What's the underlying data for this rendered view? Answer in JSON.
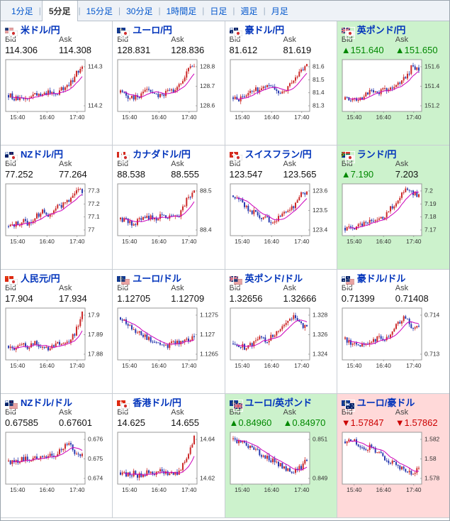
{
  "tabbar": {
    "separator": "|",
    "tabs": [
      {
        "label": "1分足",
        "selected": false
      },
      {
        "label": "5分足",
        "selected": true
      },
      {
        "label": "15分足",
        "selected": false
      },
      {
        "label": "30分足",
        "selected": false
      },
      {
        "label": "1時間足",
        "selected": false
      },
      {
        "label": "日足",
        "selected": false
      },
      {
        "label": "週足",
        "selected": false
      },
      {
        "label": "月足",
        "selected": false
      }
    ]
  },
  "colors": {
    "accent_blue": "#0033bb",
    "up_green": "#008800",
    "down_red": "#cc0000",
    "highlight_up_bg": "#ccf2cc",
    "highlight_down_bg": "#ffd9d9",
    "candle_up": "#cc2a2a",
    "candle_down": "#2a3bb0",
    "ma_line": "#cc00bb",
    "arrow_up": "▲",
    "arrow_down": "▼"
  },
  "chart_data": [
    {
      "type": "candlestick",
      "pair": "米ドル/円",
      "y_ticks": [
        "114.3",
        "114.2"
      ],
      "x_ticks": [
        "15:40",
        "16:40",
        "17:40"
      ]
    },
    {
      "type": "candlestick",
      "pair": "ユーロ/円",
      "y_ticks": [
        "128.8",
        "128.7",
        "128.6"
      ],
      "x_ticks": [
        "15:40",
        "16:40",
        "17:40"
      ]
    },
    {
      "type": "candlestick",
      "pair": "豪ドル/円",
      "y_ticks": [
        "81.6",
        "81.5",
        "81.4",
        "81.3"
      ],
      "x_ticks": [
        "15:40",
        "16:40",
        "17:40"
      ]
    },
    {
      "type": "candlestick",
      "pair": "英ポンド/円",
      "y_ticks": [
        "151.6",
        "151.4",
        "151.2"
      ],
      "x_ticks": [
        "15:40",
        "16:40",
        "17:40"
      ]
    },
    {
      "type": "candlestick",
      "pair": "NZドル/円",
      "y_ticks": [
        "77.3",
        "77.2",
        "77.1",
        "77"
      ],
      "x_ticks": [
        "15:40",
        "16:40",
        "17:40"
      ]
    },
    {
      "type": "candlestick",
      "pair": "カナダドル/円",
      "y_ticks": [
        "88.5",
        "88.4"
      ],
      "x_ticks": [
        "15:40",
        "16:40",
        "17:40"
      ]
    },
    {
      "type": "candlestick",
      "pair": "スイスフラン/円",
      "y_ticks": [
        "123.6",
        "123.5",
        "123.4"
      ],
      "x_ticks": [
        "15:40",
        "16:40",
        "17:40"
      ]
    },
    {
      "type": "candlestick",
      "pair": "ランド/円",
      "y_ticks": [
        "7.2",
        "7.19",
        "7.18",
        "7.17"
      ],
      "x_ticks": [
        "15:40",
        "16:40",
        "17:40"
      ]
    },
    {
      "type": "candlestick",
      "pair": "人民元/円",
      "y_ticks": [
        "17.9",
        "17.89",
        "17.88"
      ],
      "x_ticks": [
        "15:40",
        "16:40",
        "17:40"
      ]
    },
    {
      "type": "candlestick",
      "pair": "ユーロ/ドル",
      "y_ticks": [
        "1.1275",
        "1.127",
        "1.1265"
      ],
      "x_ticks": [
        "15:40",
        "16:40",
        "17:40"
      ]
    },
    {
      "type": "candlestick",
      "pair": "英ポンド/ドル",
      "y_ticks": [
        "1.328",
        "1.326",
        "1.324"
      ],
      "x_ticks": [
        "15:40",
        "16:40",
        "17:40"
      ]
    },
    {
      "type": "candlestick",
      "pair": "豪ドル/ドル",
      "y_ticks": [
        "0.714",
        "0.713"
      ],
      "x_ticks": [
        "15:40",
        "16:40",
        "17:40"
      ]
    },
    {
      "type": "candlestick",
      "pair": "NZドル/ドル",
      "y_ticks": [
        "0.676",
        "0.675",
        "0.674"
      ],
      "x_ticks": [
        "15:40",
        "16:40",
        "17:40"
      ]
    },
    {
      "type": "candlestick",
      "pair": "香港ドル/円",
      "y_ticks": [
        "14.64",
        "14.62"
      ],
      "x_ticks": [
        "15:40",
        "16:40",
        "17:40"
      ]
    },
    {
      "type": "candlestick",
      "pair": "ユーロ/英ポンド",
      "y_ticks": [
        "0.851",
        "0.849"
      ],
      "x_ticks": [
        "15:40",
        "16:40",
        "17:40"
      ]
    },
    {
      "type": "candlestick",
      "pair": "ユーロ/豪ドル",
      "y_ticks": [
        "1.582",
        "1.58",
        "1.578"
      ],
      "x_ticks": [
        "15:40",
        "16:40",
        "17:40"
      ]
    }
  ],
  "panels": [
    {
      "pair": "米ドル/円",
      "flags": [
        "us",
        "jp"
      ],
      "bid_label": "Bid",
      "ask_label": "Ask",
      "bid": "114.306",
      "ask": "114.308",
      "bid_dir": "flat",
      "ask_dir": "flat",
      "highlight": "none",
      "y_ticks": [
        "114.3",
        "114.2"
      ],
      "x_ticks": [
        "15:40",
        "16:40",
        "17:40"
      ],
      "trend": [
        0.3,
        0.22,
        0.18,
        0.25,
        0.32,
        0.28,
        0.35,
        0.3,
        0.42,
        0.5,
        0.72,
        0.95
      ]
    },
    {
      "pair": "ユーロ/円",
      "flags": [
        "eu",
        "jp"
      ],
      "bid_label": "Bid",
      "ask_label": "Ask",
      "bid": "128.831",
      "ask": "128.836",
      "bid_dir": "flat",
      "ask_dir": "flat",
      "highlight": "none",
      "y_ticks": [
        "128.8",
        "128.7",
        "128.6"
      ],
      "x_ticks": [
        "15:40",
        "16:40",
        "17:40"
      ],
      "trend": [
        0.35,
        0.28,
        0.22,
        0.3,
        0.38,
        0.32,
        0.28,
        0.4,
        0.35,
        0.55,
        0.8,
        0.95
      ]
    },
    {
      "pair": "豪ドル/円",
      "flags": [
        "au",
        "jp"
      ],
      "bid_label": "Bid",
      "ask_label": "Ask",
      "bid": "81.612",
      "ask": "81.619",
      "bid_dir": "flat",
      "ask_dir": "flat",
      "highlight": "none",
      "y_ticks": [
        "81.6",
        "81.5",
        "81.4",
        "81.3"
      ],
      "x_ticks": [
        "15:40",
        "16:40",
        "17:40"
      ],
      "trend": [
        0.25,
        0.2,
        0.3,
        0.45,
        0.4,
        0.5,
        0.45,
        0.35,
        0.45,
        0.6,
        0.85,
        0.9
      ]
    },
    {
      "pair": "英ポンド/円",
      "flags": [
        "gb",
        "jp"
      ],
      "bid_label": "Bid",
      "ask_label": "Ask",
      "bid": "151.640",
      "ask": "151.650",
      "bid_dir": "up",
      "ask_dir": "up",
      "highlight": "up",
      "y_ticks": [
        "151.6",
        "151.4",
        "151.2"
      ],
      "x_ticks": [
        "15:40",
        "16:40",
        "17:40"
      ],
      "trend": [
        0.2,
        0.25,
        0.22,
        0.3,
        0.38,
        0.35,
        0.45,
        0.4,
        0.55,
        0.65,
        0.9,
        0.85
      ]
    },
    {
      "pair": "NZドル/円",
      "flags": [
        "nz",
        "jp"
      ],
      "bid_label": "Bid",
      "ask_label": "Ask",
      "bid": "77.252",
      "ask": "77.264",
      "bid_dir": "flat",
      "ask_dir": "flat",
      "highlight": "none",
      "y_ticks": [
        "77.3",
        "77.2",
        "77.1",
        "77"
      ],
      "x_ticks": [
        "15:40",
        "16:40",
        "17:40"
      ],
      "trend": [
        0.15,
        0.2,
        0.25,
        0.22,
        0.35,
        0.45,
        0.4,
        0.55,
        0.6,
        0.7,
        0.9,
        0.88
      ]
    },
    {
      "pair": "カナダドル/円",
      "flags": [
        "ca",
        "jp"
      ],
      "bid_label": "Bid",
      "ask_label": "Ask",
      "bid": "88.538",
      "ask": "88.555",
      "bid_dir": "flat",
      "ask_dir": "flat",
      "highlight": "none",
      "y_ticks": [
        "88.5",
        "88.4"
      ],
      "x_ticks": [
        "15:40",
        "16:40",
        "17:40"
      ],
      "trend": [
        0.3,
        0.25,
        0.2,
        0.28,
        0.35,
        0.3,
        0.4,
        0.35,
        0.3,
        0.45,
        0.75,
        0.9
      ]
    },
    {
      "pair": "スイスフラン/円",
      "flags": [
        "ch",
        "jp"
      ],
      "bid_label": "Bid",
      "ask_label": "Ask",
      "bid": "123.547",
      "ask": "123.565",
      "bid_dir": "flat",
      "ask_dir": "flat",
      "highlight": "none",
      "y_ticks": [
        "123.6",
        "123.5",
        "123.4"
      ],
      "x_ticks": [
        "15:40",
        "16:40",
        "17:40"
      ],
      "trend": [
        0.8,
        0.7,
        0.55,
        0.45,
        0.35,
        0.3,
        0.25,
        0.35,
        0.45,
        0.55,
        0.8,
        0.9
      ]
    },
    {
      "pair": "ランド/円",
      "flags": [
        "za",
        "jp"
      ],
      "bid_label": "Bid",
      "ask_label": "Ask",
      "bid": "7.190",
      "ask": "7.203",
      "bid_dir": "up",
      "ask_dir": "flat",
      "highlight": "up",
      "y_ticks": [
        "7.2",
        "7.19",
        "7.18",
        "7.17"
      ],
      "x_ticks": [
        "15:40",
        "16:40",
        "17:40"
      ],
      "trend": [
        0.12,
        0.1,
        0.18,
        0.25,
        0.3,
        0.28,
        0.4,
        0.55,
        0.7,
        0.95,
        0.85,
        0.8
      ]
    },
    {
      "pair": "人民元/円",
      "flags": [
        "cn",
        "jp"
      ],
      "bid_label": "Bid",
      "ask_label": "Ask",
      "bid": "17.904",
      "ask": "17.934",
      "bid_dir": "flat",
      "ask_dir": "flat",
      "highlight": "none",
      "y_ticks": [
        "17.9",
        "17.89",
        "17.88"
      ],
      "x_ticks": [
        "15:40",
        "16:40",
        "17:40"
      ],
      "trend": [
        0.25,
        0.2,
        0.28,
        0.22,
        0.3,
        0.25,
        0.2,
        0.28,
        0.35,
        0.3,
        0.55,
        0.95
      ]
    },
    {
      "pair": "ユーロ/ドル",
      "flags": [
        "eu",
        "us"
      ],
      "bid_label": "Bid",
      "ask_label": "Ask",
      "bid": "1.12705",
      "ask": "1.12709",
      "bid_dir": "flat",
      "ask_dir": "flat",
      "highlight": "none",
      "y_ticks": [
        "1.1275",
        "1.127",
        "1.1265"
      ],
      "x_ticks": [
        "15:40",
        "16:40",
        "17:40"
      ],
      "trend": [
        0.85,
        0.75,
        0.6,
        0.5,
        0.4,
        0.35,
        0.3,
        0.25,
        0.35,
        0.3,
        0.4,
        0.45
      ]
    },
    {
      "pair": "英ポンド/ドル",
      "flags": [
        "gb",
        "us"
      ],
      "bid_label": "Bid",
      "ask_label": "Ask",
      "bid": "1.32656",
      "ask": "1.32666",
      "bid_dir": "flat",
      "ask_dir": "flat",
      "highlight": "none",
      "y_ticks": [
        "1.328",
        "1.326",
        "1.324"
      ],
      "x_ticks": [
        "15:40",
        "16:40",
        "17:40"
      ],
      "trend": [
        0.3,
        0.25,
        0.2,
        0.3,
        0.4,
        0.35,
        0.5,
        0.6,
        0.75,
        0.85,
        0.7,
        0.6
      ]
    },
    {
      "pair": "豪ドル/ドル",
      "flags": [
        "au",
        "us"
      ],
      "bid_label": "Bid",
      "ask_label": "Ask",
      "bid": "0.71399",
      "ask": "0.71408",
      "bid_dir": "flat",
      "ask_dir": "flat",
      "highlight": "none",
      "y_ticks": [
        "0.714",
        "0.713"
      ],
      "x_ticks": [
        "15:40",
        "16:40",
        "17:40"
      ],
      "trend": [
        0.4,
        0.3,
        0.25,
        0.35,
        0.3,
        0.45,
        0.4,
        0.55,
        0.75,
        0.85,
        0.65,
        0.7
      ]
    },
    {
      "pair": "NZドル/ドル",
      "flags": [
        "nz",
        "us"
      ],
      "bid_label": "Bid",
      "ask_label": "Ask",
      "bid": "0.67585",
      "ask": "0.67601",
      "bid_dir": "flat",
      "ask_dir": "flat",
      "highlight": "none",
      "y_ticks": [
        "0.676",
        "0.675",
        "0.674"
      ],
      "x_ticks": [
        "15:40",
        "16:40",
        "17:40"
      ],
      "trend": [
        0.45,
        0.4,
        0.5,
        0.45,
        0.55,
        0.5,
        0.6,
        0.55,
        0.7,
        0.85,
        0.6,
        0.55
      ]
    },
    {
      "pair": "香港ドル/円",
      "flags": [
        "hk",
        "jp"
      ],
      "bid_label": "Bid",
      "ask_label": "Ask",
      "bid": "14.625",
      "ask": "14.655",
      "bid_dir": "flat",
      "ask_dir": "flat",
      "highlight": "none",
      "y_ticks": [
        "14.64",
        "14.62"
      ],
      "x_ticks": [
        "15:40",
        "16:40",
        "17:40"
      ],
      "trend": [
        0.2,
        0.15,
        0.18,
        0.12,
        0.2,
        0.15,
        0.22,
        0.18,
        0.15,
        0.25,
        0.55,
        0.95
      ]
    },
    {
      "pair": "ユーロ/英ポンド",
      "flags": [
        "eu",
        "gb"
      ],
      "bid_label": "Bid",
      "ask_label": "Ask",
      "bid": "0.84960",
      "ask": "0.84970",
      "bid_dir": "up",
      "ask_dir": "up",
      "highlight": "up",
      "y_ticks": [
        "0.851",
        "0.849"
      ],
      "x_ticks": [
        "15:40",
        "16:40",
        "17:40"
      ],
      "trend": [
        0.9,
        0.85,
        0.75,
        0.7,
        0.6,
        0.5,
        0.45,
        0.35,
        0.25,
        0.2,
        0.3,
        0.45
      ]
    },
    {
      "pair": "ユーロ/豪ドル",
      "flags": [
        "eu",
        "au"
      ],
      "bid_label": "Bid",
      "ask_label": "Ask",
      "bid": "1.57847",
      "ask": "1.57862",
      "bid_dir": "down",
      "ask_dir": "down",
      "highlight": "down",
      "y_ticks": [
        "1.582",
        "1.58",
        "1.578"
      ],
      "x_ticks": [
        "15:40",
        "16:40",
        "17:40"
      ],
      "trend": [
        0.85,
        0.9,
        0.8,
        0.7,
        0.75,
        0.6,
        0.5,
        0.4,
        0.3,
        0.25,
        0.2,
        0.28
      ]
    }
  ]
}
